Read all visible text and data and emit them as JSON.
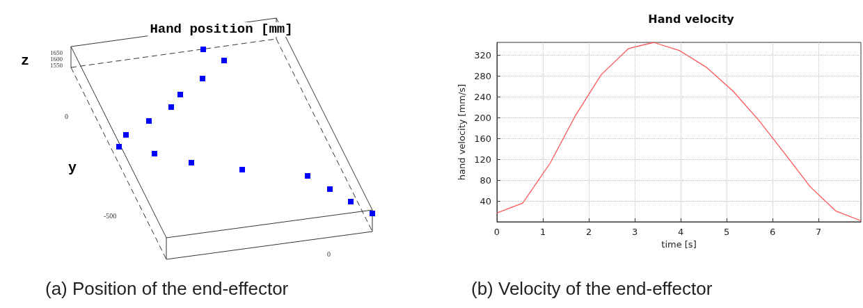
{
  "chart_data": [
    {
      "type": "other",
      "title": "Hand position [mm]",
      "xlabel": "y",
      "annotations": [
        "z",
        "1650",
        "1600",
        "1550",
        "0",
        "-500",
        "0",
        "(a) Position of the end-effector"
      ]
    },
    {
      "type": "line",
      "title": "Hand velocity",
      "xlabel": "time [s]",
      "ylabel": "hand velocity [mm/s]",
      "x": [
        0,
        0.56,
        1.16,
        1.7,
        2.27,
        2.86,
        3.41,
        3.98,
        4.56,
        5.14,
        5.69,
        6.24,
        6.82,
        7.37,
        7.92
      ],
      "series": [
        {
          "color": "#ff5555",
          "values": [
            17,
            36,
            113,
            203,
            283,
            333,
            345,
            329,
            297,
            251,
            196,
            134,
            67,
            21,
            2
          ]
        }
      ],
      "xlim": [
        0,
        7.92
      ],
      "xticks": [
        0,
        1,
        2,
        3,
        4,
        5,
        6,
        7
      ],
      "ylim": [
        0,
        345
      ],
      "yticks": [
        40,
        80,
        120,
        160,
        200,
        240,
        280,
        320
      ],
      "grid": true,
      "marker": "none",
      "line_style": "solid",
      "annotations": [
        "(b) Velocity of the end-effector"
      ]
    }
  ]
}
